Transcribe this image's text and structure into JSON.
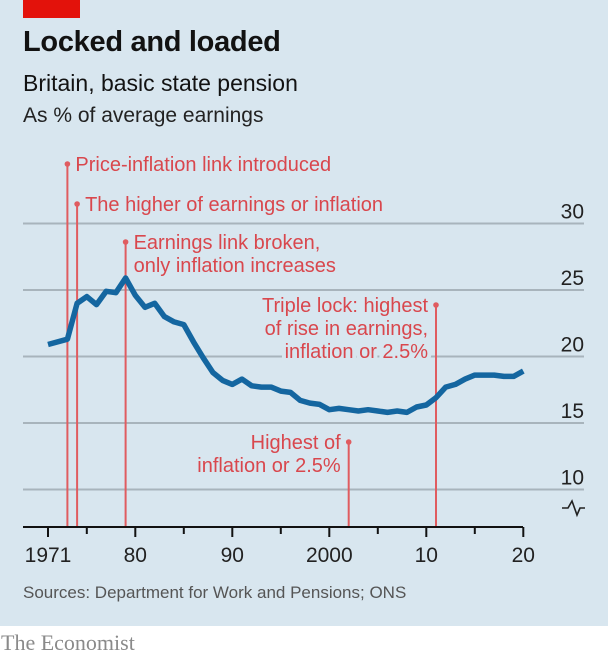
{
  "header": {
    "title": "Locked and loaded",
    "subtitle": "Britain, basic state pension",
    "unit": "As % of average earnings"
  },
  "footer": {
    "source": "Sources: Department for Work and Pensions; ONS",
    "brand": "The Economist"
  },
  "colors": {
    "background": "#d8e6ef",
    "series": "#1466a0",
    "annotation": "#d9474d",
    "brand_tag": "#e3120b"
  },
  "chart_data": {
    "type": "line",
    "title": "Locked and loaded",
    "subtitle": "Britain, basic state pension",
    "ylabel": "As % of average earnings",
    "xlabel": "",
    "xlim": [
      1968.5,
      2020
    ],
    "ylim": [
      7,
      31
    ],
    "y_axis_side": "right",
    "y_axis_break": true,
    "grid": true,
    "x_ticks": [
      1971,
      1975,
      1980,
      1985,
      1990,
      1995,
      2000,
      2005,
      2010,
      2015,
      2020
    ],
    "x_tick_labels": [
      {
        "year": 1971,
        "label": "1971"
      },
      {
        "year": 1980,
        "label": "80"
      },
      {
        "year": 1990,
        "label": "90"
      },
      {
        "year": 2000,
        "label": "2000"
      },
      {
        "year": 2010,
        "label": "10"
      },
      {
        "year": 2020,
        "label": "20"
      }
    ],
    "y_ticks": [
      {
        "value": 10,
        "label": "10"
      },
      {
        "value": 15,
        "label": "15"
      },
      {
        "value": 20,
        "label": "20"
      },
      {
        "value": 25,
        "label": "25"
      },
      {
        "value": 30,
        "label": "30"
      }
    ],
    "series": [
      {
        "name": "Basic state pension, % of average earnings",
        "x": [
          1971,
          1973,
          1974,
          1975,
          1976,
          1977,
          1978,
          1979,
          1980,
          1981,
          1982,
          1983,
          1984,
          1985,
          1986,
          1987,
          1988,
          1989,
          1990,
          1991,
          1992,
          1993,
          1994,
          1995,
          1996,
          1997,
          1998,
          1999,
          2000,
          2001,
          2002,
          2003,
          2004,
          2005,
          2006,
          2007,
          2008,
          2009,
          2010,
          2011,
          2012,
          2013,
          2014,
          2015,
          2016,
          2017,
          2018,
          2019,
          2020
        ],
        "values": [
          20.9,
          21.3,
          24.0,
          24.5,
          23.9,
          24.9,
          24.8,
          25.9,
          24.6,
          23.7,
          24.0,
          23.0,
          22.6,
          22.4,
          21.1,
          19.9,
          18.8,
          18.2,
          17.9,
          18.3,
          17.8,
          17.7,
          17.7,
          17.4,
          17.3,
          16.7,
          16.5,
          16.4,
          16.0,
          16.1,
          16.0,
          15.9,
          16.0,
          15.9,
          15.8,
          15.9,
          15.8,
          16.2,
          16.35,
          16.9,
          17.7,
          17.9,
          18.3,
          18.6,
          18.6,
          18.6,
          18.5,
          18.5,
          18.9
        ]
      }
    ],
    "annotations": [
      {
        "year": 1973,
        "lines": [
          "Price-inflation link introduced"
        ],
        "align": "left",
        "row": 1
      },
      {
        "year": 1974,
        "lines": [
          "The higher of earnings or inflation"
        ],
        "align": "left",
        "row": 2
      },
      {
        "year": 1979,
        "lines": [
          "Earnings link broken,",
          "only inflation increases"
        ],
        "align": "left",
        "row": 3
      },
      {
        "year": 2002,
        "lines": [
          "Highest of",
          "inflation or 2.5%"
        ],
        "align": "right",
        "row": 5
      },
      {
        "year": 2011,
        "lines": [
          "Triple lock: highest",
          "of rise in earnings,",
          "inflation or 2.5%"
        ],
        "align": "right",
        "row": 4
      }
    ]
  }
}
